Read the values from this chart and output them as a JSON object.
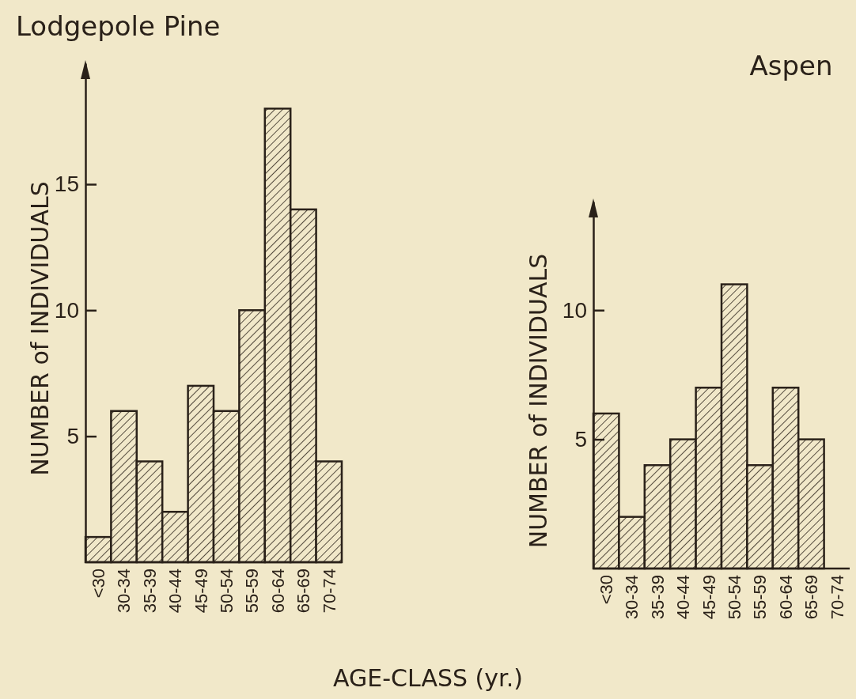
{
  "chart_data": [
    {
      "type": "bar",
      "title": "Lodgepole Pine",
      "ylabel": "NUMBER of INDIVIDUALS",
      "xlabel": "AGE-CLASS (yr.)",
      "categories": [
        "<30",
        "30-34",
        "35-39",
        "40-44",
        "45-49",
        "50-54",
        "55-59",
        "60-64",
        "65-69",
        "70-74"
      ],
      "values": [
        1,
        6,
        4,
        2,
        7,
        6,
        10,
        18,
        14,
        4
      ],
      "color": "#2a2119",
      "ylim": [
        0,
        19.8
      ],
      "yticks": [
        5,
        10,
        15
      ],
      "grid": false
    },
    {
      "type": "bar",
      "title": "Aspen",
      "ylabel": "NUMBER of INDIVIDUALS",
      "categories": [
        "<30",
        "30-34",
        "35-39",
        "40-44",
        "45-49",
        "50-54",
        "55-59",
        "60-64",
        "65-69",
        "70-74"
      ],
      "values": [
        6,
        2,
        4,
        5,
        7,
        11,
        4,
        7,
        5,
        0
      ],
      "color": "#2a2119",
      "ylim": [
        0,
        14.2
      ],
      "yticks": [
        5,
        10
      ],
      "grid": false
    }
  ]
}
